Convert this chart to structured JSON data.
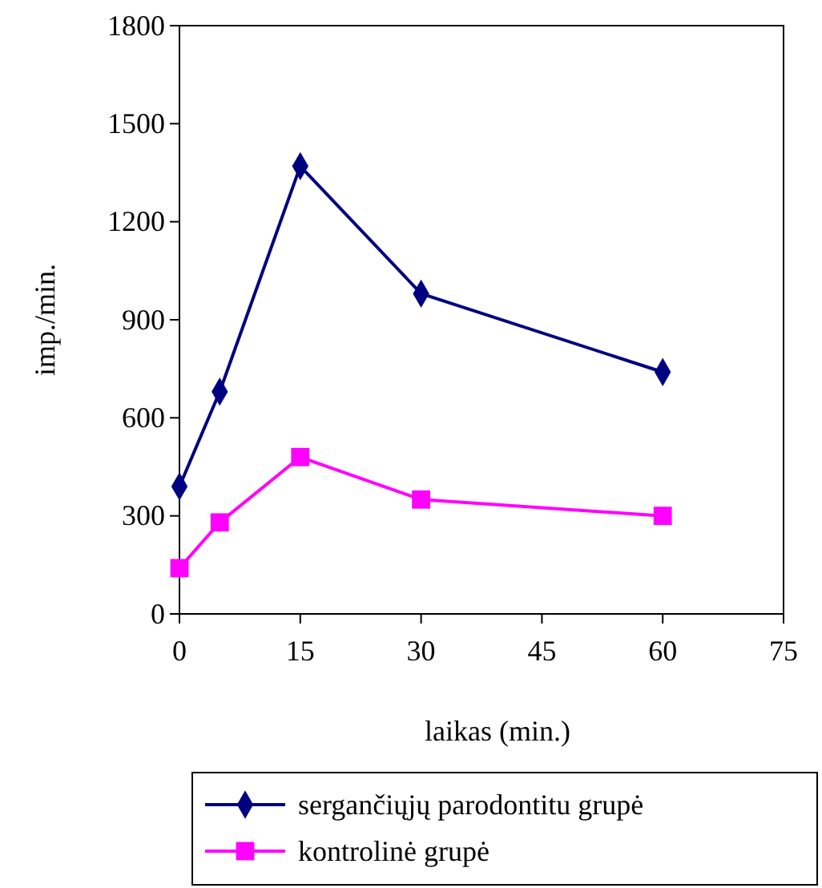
{
  "chart_data": {
    "type": "line",
    "xlabel": "laikas (min.)",
    "ylabel": "imp./min.",
    "x": [
      0,
      5,
      15,
      30,
      60
    ],
    "series": [
      {
        "name": "sergančiųjų parodontitu grupė",
        "color": "#000080",
        "values": [
          390,
          680,
          1370,
          980,
          740
        ],
        "marker": "diamond"
      },
      {
        "name": "kontrolinė grupė",
        "color": "#ff00ff",
        "values": [
          140,
          280,
          480,
          350,
          300
        ],
        "marker": "square"
      }
    ],
    "xlim": [
      0,
      75
    ],
    "xticks": [
      0,
      15,
      30,
      45,
      60,
      75
    ],
    "ylim": [
      0,
      1800
    ],
    "yticks": [
      0,
      300,
      600,
      900,
      1200,
      1500,
      1800
    ],
    "grid": false,
    "legend": "bottom"
  }
}
